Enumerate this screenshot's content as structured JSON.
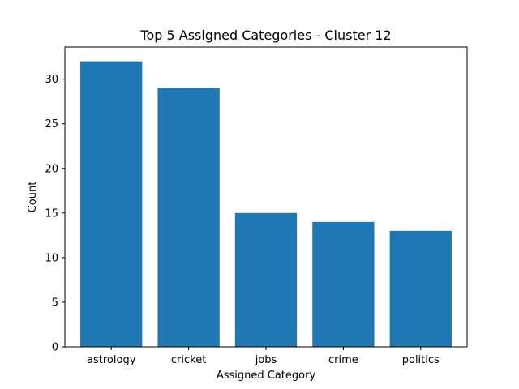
{
  "chart_data": {
    "type": "bar",
    "title": "Top 5 Assigned Categories - Cluster 12",
    "xlabel": "Assigned Category",
    "ylabel": "Count",
    "categories": [
      "astrology",
      "cricket",
      "jobs",
      "crime",
      "politics"
    ],
    "values": [
      32,
      29,
      15,
      14,
      13
    ],
    "yticks": [
      0,
      5,
      10,
      15,
      20,
      25,
      30
    ],
    "ylim": [
      0,
      33.6
    ],
    "grid": false,
    "bar_color": "#1f77b4"
  }
}
